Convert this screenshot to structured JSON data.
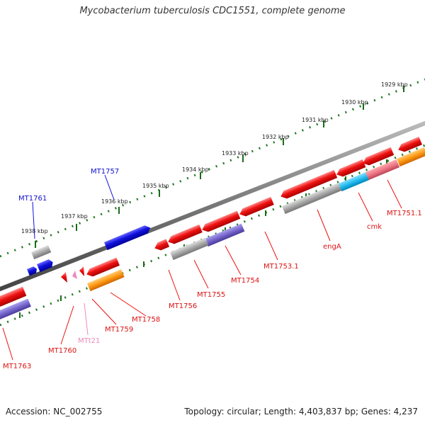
{
  "title": "Mycobacterium tuberculosis CDC1551, complete genome",
  "footer": {
    "accession": "Accession: NC_002755",
    "info": "Topology: circular; Length: 4,403,837 bp; Genes: 4,237"
  },
  "ticks": [
    "1929 kbp",
    "1930 kbp",
    "1931 kbp",
    "1932 kbp",
    "1933 kbp",
    "1934 kbp",
    "1935 kbp",
    "1936 kbp",
    "1937 kbp",
    "1938 kbp"
  ],
  "gene_labels": [
    "MT1757",
    "MT1761",
    "engA",
    "cmk",
    "MT1751.1",
    "MT1753.1",
    "MT1754",
    "MT1755",
    "MT1756",
    "MT1758",
    "MT1759",
    "MT1760",
    "MTt21",
    "MT1763"
  ],
  "colors": {
    "red": "#ee1111",
    "blue": "#1111dd",
    "gray": "#a8a8a8",
    "purple": "#7766cc",
    "orange": "#ff9911",
    "cyan": "#22bbee",
    "pink": "#ee7788",
    "light_pink": "#ee88bb",
    "tick_green": "#227722",
    "backbone": "#777777"
  }
}
